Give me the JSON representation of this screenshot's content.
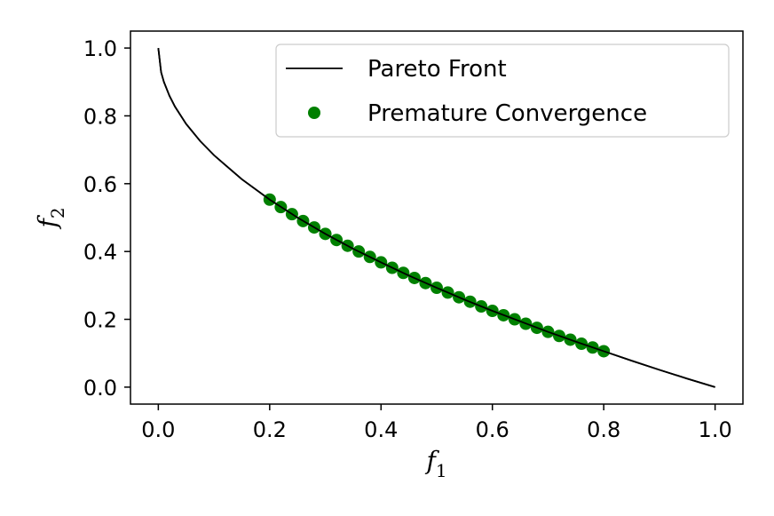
{
  "chart_data": {
    "type": "line",
    "title": "",
    "xlabel": "f",
    "xlabel_sub": "1",
    "ylabel": "f",
    "ylabel_sub": "2",
    "xlim": [
      -0.05,
      1.05
    ],
    "ylim": [
      -0.05,
      1.05
    ],
    "xticks": [
      0.0,
      0.2,
      0.4,
      0.6,
      0.8,
      1.0
    ],
    "yticks": [
      0.0,
      0.2,
      0.4,
      0.6,
      0.8,
      1.0
    ],
    "xtick_labels": [
      "0.0",
      "0.2",
      "0.4",
      "0.6",
      "0.8",
      "1.0"
    ],
    "ytick_labels": [
      "0.0",
      "0.2",
      "0.4",
      "0.6",
      "0.8",
      "1.0"
    ],
    "grid": false,
    "legend_position": "top-right",
    "series": [
      {
        "name": "Pareto Front",
        "kind": "line",
        "color": "#000000",
        "x": [
          0.0,
          0.005,
          0.01,
          0.02,
          0.03,
          0.05,
          0.075,
          0.1,
          0.15,
          0.2,
          0.25,
          0.3,
          0.35,
          0.4,
          0.45,
          0.5,
          0.55,
          0.6,
          0.65,
          0.7,
          0.75,
          0.8,
          0.85,
          0.9,
          0.95,
          1.0
        ],
        "y": [
          1.0,
          0.929,
          0.9,
          0.859,
          0.827,
          0.776,
          0.726,
          0.684,
          0.613,
          0.553,
          0.5,
          0.452,
          0.408,
          0.368,
          0.329,
          0.293,
          0.258,
          0.225,
          0.194,
          0.163,
          0.134,
          0.106,
          0.078,
          0.051,
          0.025,
          0.0
        ]
      },
      {
        "name": "Premature Convergence",
        "kind": "scatter",
        "color": "#008000",
        "x": [
          0.2,
          0.22,
          0.24,
          0.26,
          0.28,
          0.3,
          0.32,
          0.34,
          0.36,
          0.38,
          0.4,
          0.42,
          0.44,
          0.46,
          0.48,
          0.5,
          0.52,
          0.54,
          0.56,
          0.58,
          0.6,
          0.62,
          0.64,
          0.66,
          0.68,
          0.7,
          0.72,
          0.74,
          0.76,
          0.78,
          0.8
        ],
        "y": [
          0.553,
          0.531,
          0.51,
          0.49,
          0.471,
          0.452,
          0.434,
          0.417,
          0.4,
          0.384,
          0.368,
          0.352,
          0.337,
          0.322,
          0.307,
          0.293,
          0.279,
          0.265,
          0.252,
          0.238,
          0.225,
          0.212,
          0.2,
          0.187,
          0.175,
          0.163,
          0.151,
          0.14,
          0.128,
          0.117,
          0.106
        ]
      }
    ]
  }
}
